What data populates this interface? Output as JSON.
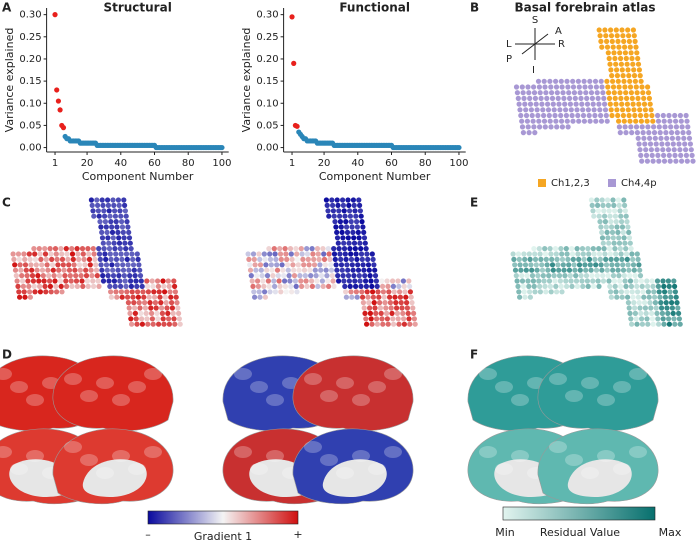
{
  "chart_data": [
    {
      "type": "scatter",
      "title": "Structural",
      "xlabel": "Component Number",
      "ylabel": "Variance explained",
      "xlim": [
        -4,
        104
      ],
      "ylim": [
        -0.01,
        0.315
      ],
      "xticks": [
        1,
        20,
        40,
        60,
        80,
        100
      ],
      "yticks": [
        {
          "value": 0,
          "label": "0.00"
        },
        {
          "value": 0.05,
          "label": "0.05"
        },
        {
          "value": 0.1,
          "label": "0.10"
        },
        {
          "value": 0.15,
          "label": "0.15"
        },
        {
          "value": 0.2,
          "label": "0.20"
        },
        {
          "value": 0.25,
          "label": "0.25"
        },
        {
          "value": 0.3,
          "label": "0.30"
        }
      ],
      "series": [
        {
          "color": "#e8201c",
          "x": [
            1,
            2,
            3,
            4,
            5,
            6
          ],
          "values": [
            0.3,
            0.13,
            0.105,
            0.085,
            0.05,
            0.045
          ]
        },
        {
          "color": "#2a86b8",
          "x": [
            7,
            8,
            9,
            10,
            11,
            12,
            13,
            14,
            15,
            16,
            17,
            18,
            19,
            20,
            21,
            22,
            23,
            24,
            25,
            26,
            27,
            28,
            29,
            30,
            31,
            32,
            33,
            34,
            35,
            36,
            37,
            38,
            39,
            40,
            41,
            42,
            43,
            44,
            45,
            46,
            47,
            48,
            49,
            50,
            51,
            52,
            53,
            54,
            55,
            56,
            57,
            58,
            59,
            60,
            61,
            62,
            63,
            64,
            65,
            66,
            67,
            68,
            69,
            70,
            71,
            72,
            73,
            74,
            75,
            76,
            77,
            78,
            79,
            80,
            81,
            82,
            83,
            84,
            85,
            86,
            87,
            88,
            89,
            90,
            91,
            92,
            93,
            94,
            95,
            96,
            97,
            98,
            99,
            100
          ],
          "values": [
            0.025,
            0.02,
            0.02,
            0.015,
            0.015,
            0.015,
            0.015,
            0.015,
            0.015,
            0.01,
            0.01,
            0.01,
            0.01,
            0.01,
            0.01,
            0.01,
            0.01,
            0.01,
            0.01,
            0.005,
            0.005,
            0.005,
            0.005,
            0.005,
            0.005,
            0.005,
            0.005,
            0.005,
            0.005,
            0.005,
            0.005,
            0.005,
            0.005,
            0.005,
            0.005,
            0.005,
            0.005,
            0.005,
            0.005,
            0.005,
            0.005,
            0.005,
            0.005,
            0.005,
            0.005,
            0.005,
            0.005,
            0.005,
            0.005,
            0.005,
            0.005,
            0.005,
            0.005,
            0.005,
            0,
            0,
            0,
            0,
            0,
            0,
            0,
            0,
            0,
            0,
            0,
            0,
            0,
            0,
            0,
            0,
            0,
            0,
            0,
            0,
            0,
            0,
            0,
            0,
            0,
            0,
            0,
            0,
            0,
            0,
            0,
            0,
            0,
            0,
            0,
            0,
            0,
            0,
            0,
            0
          ]
        }
      ]
    },
    {
      "type": "scatter",
      "title": "Functional",
      "xlabel": "Component Number",
      "ylabel": "Variance explained",
      "xlim": [
        -4,
        104
      ],
      "ylim": [
        -0.01,
        0.315
      ],
      "xticks": [
        1,
        20,
        40,
        60,
        80,
        100
      ],
      "yticks": [
        {
          "value": 0,
          "label": "0.00"
        },
        {
          "value": 0.05,
          "label": "0.05"
        },
        {
          "value": 0.1,
          "label": "0.10"
        },
        {
          "value": 0.15,
          "label": "0.15"
        },
        {
          "value": 0.2,
          "label": "0.20"
        },
        {
          "value": 0.25,
          "label": "0.25"
        },
        {
          "value": 0.3,
          "label": "0.30"
        }
      ],
      "series": [
        {
          "color": "#e8201c",
          "x": [
            1,
            2,
            3,
            4
          ],
          "values": [
            0.295,
            0.19,
            0.05,
            0.048
          ]
        },
        {
          "color": "#2a86b8",
          "x": [
            5,
            6,
            7,
            8,
            9,
            10,
            11,
            12,
            13,
            14,
            15,
            16,
            17,
            18,
            19,
            20,
            21,
            22,
            23,
            24,
            25,
            26,
            27,
            28,
            29,
            30,
            31,
            32,
            33,
            34,
            35,
            36,
            37,
            38,
            39,
            40,
            41,
            42,
            43,
            44,
            45,
            46,
            47,
            48,
            49,
            50,
            51,
            52,
            53,
            54,
            55,
            56,
            57,
            58,
            59,
            60,
            61,
            62,
            63,
            64,
            65,
            66,
            67,
            68,
            69,
            70,
            71,
            72,
            73,
            74,
            75,
            76,
            77,
            78,
            79,
            80,
            81,
            82,
            83,
            84,
            85,
            86,
            87,
            88,
            89,
            90,
            91,
            92,
            93,
            94,
            95,
            96,
            97,
            98,
            99,
            100
          ],
          "values": [
            0.035,
            0.03,
            0.025,
            0.02,
            0.02,
            0.015,
            0.015,
            0.015,
            0.015,
            0.015,
            0.015,
            0.01,
            0.01,
            0.01,
            0.01,
            0.01,
            0.01,
            0.01,
            0.01,
            0.01,
            0.01,
            0.005,
            0.005,
            0.005,
            0.005,
            0.005,
            0.005,
            0.005,
            0.005,
            0.005,
            0.005,
            0.005,
            0.005,
            0.005,
            0.005,
            0.005,
            0.005,
            0.005,
            0.005,
            0.005,
            0.005,
            0.005,
            0.005,
            0.005,
            0.005,
            0.005,
            0.005,
            0.005,
            0.005,
            0.005,
            0.005,
            0.005,
            0.005,
            0.005,
            0.005,
            0.005,
            0,
            0,
            0,
            0,
            0,
            0,
            0,
            0,
            0,
            0,
            0,
            0,
            0,
            0,
            0,
            0,
            0,
            0,
            0,
            0,
            0,
            0,
            0,
            0,
            0,
            0,
            0,
            0,
            0,
            0,
            0,
            0,
            0,
            0,
            0,
            0,
            0,
            0,
            0,
            0
          ]
        }
      ]
    }
  ],
  "panels": {
    "a": "A",
    "b": "B",
    "c": "C",
    "d": "D",
    "e": "E",
    "f": "F"
  },
  "atlas": {
    "title": "Basal forebrain atlas",
    "axes": {
      "s": "S",
      "a": "A",
      "l": "L",
      "r": "R",
      "p": "P",
      "i": "I"
    },
    "legend": [
      {
        "name": "Ch1,2,3",
        "color": "#f5a623"
      },
      {
        "name": "Ch4,4p",
        "color": "#a898d4"
      }
    ]
  },
  "gradient_bar": {
    "min": "–",
    "label": "Gradient 1",
    "max": "+"
  },
  "residual_bar": {
    "min": "Min",
    "label": "Residual Value",
    "max": "Max"
  }
}
